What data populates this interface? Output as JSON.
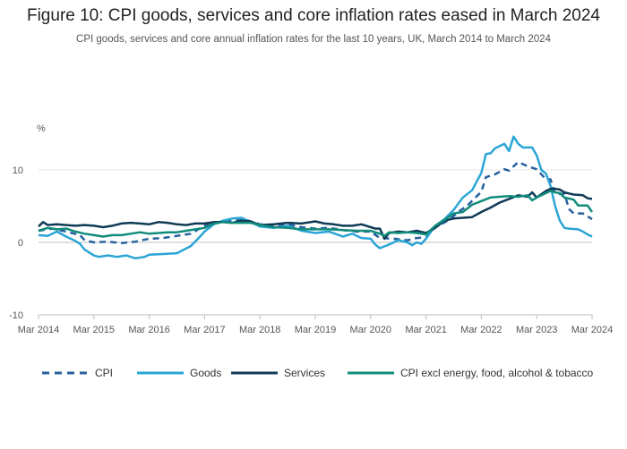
{
  "title": "Figure 10: CPI goods, services and core inflation rates eased in March 2024",
  "subtitle": "CPI goods, services and core annual inflation rates for the last 10 years, UK, March 2014 to March 2024",
  "chart_data": {
    "type": "line",
    "ylabel": "%",
    "ylim": [
      -10,
      15
    ],
    "yticks": [
      -10,
      0,
      10
    ],
    "xlim": [
      0,
      120
    ],
    "xticks": [
      {
        "label": "Mar 2014",
        "value": 0
      },
      {
        "label": "Mar 2015",
        "value": 12
      },
      {
        "label": "Mar 2016",
        "value": 24
      },
      {
        "label": "Mar 2017",
        "value": 36
      },
      {
        "label": "Mar 2018",
        "value": 48
      },
      {
        "label": "Mar 2019",
        "value": 60
      },
      {
        "label": "Mar 2020",
        "value": 72
      },
      {
        "label": "Mar 2021",
        "value": 84
      },
      {
        "label": "Mar 2022",
        "value": 96
      },
      {
        "label": "Mar 2023",
        "value": 108
      },
      {
        "label": "Mar 2024",
        "value": 120
      }
    ],
    "x_note": "x values are months since March 2014",
    "series": [
      {
        "name": "CPI",
        "color": "#27609e",
        "style": "dashed",
        "points": [
          [
            0,
            1.6
          ],
          [
            3,
            1.9
          ],
          [
            6,
            1.5
          ],
          [
            9,
            1.0
          ],
          [
            10,
            0.3
          ],
          [
            12,
            0.0
          ],
          [
            15,
            0.1
          ],
          [
            18,
            -0.1
          ],
          [
            21,
            0.1
          ],
          [
            24,
            0.5
          ],
          [
            27,
            0.6
          ],
          [
            30,
            0.9
          ],
          [
            33,
            1.2
          ],
          [
            36,
            2.3
          ],
          [
            39,
            2.7
          ],
          [
            42,
            3.0
          ],
          [
            45,
            3.1
          ],
          [
            48,
            2.5
          ],
          [
            51,
            2.4
          ],
          [
            54,
            2.5
          ],
          [
            57,
            2.1
          ],
          [
            60,
            1.9
          ],
          [
            63,
            2.0
          ],
          [
            66,
            1.7
          ],
          [
            69,
            1.5
          ],
          [
            72,
            1.5
          ],
          [
            74,
            0.6
          ],
          [
            77,
            0.5
          ],
          [
            80,
            0.3
          ],
          [
            82,
            0.6
          ],
          [
            84,
            0.7
          ],
          [
            86,
            2.1
          ],
          [
            89,
            3.1
          ],
          [
            91,
            4.2
          ],
          [
            93,
            5.1
          ],
          [
            96,
            7.0
          ],
          [
            97,
            9.0
          ],
          [
            99,
            9.4
          ],
          [
            101,
            10.1
          ],
          [
            102,
            9.9
          ],
          [
            104,
            11.1
          ],
          [
            106,
            10.5
          ],
          [
            108,
            10.1
          ],
          [
            110,
            8.7
          ],
          [
            111,
            8.7
          ],
          [
            112,
            6.7
          ],
          [
            114,
            6.7
          ],
          [
            115,
            4.6
          ],
          [
            116,
            4.0
          ],
          [
            118,
            4.0
          ],
          [
            120,
            3.2
          ]
        ]
      },
      {
        "name": "Goods",
        "color": "#2aa5d6",
        "style": "solid",
        "points": [
          [
            0,
            1.0
          ],
          [
            2,
            0.9
          ],
          [
            4,
            1.5
          ],
          [
            6,
            0.8
          ],
          [
            8,
            0.2
          ],
          [
            9,
            -0.2
          ],
          [
            10,
            -1.0
          ],
          [
            12,
            -1.8
          ],
          [
            13,
            -2.0
          ],
          [
            15,
            -1.8
          ],
          [
            17,
            -2.0
          ],
          [
            19,
            -1.8
          ],
          [
            21,
            -2.2
          ],
          [
            23,
            -2.0
          ],
          [
            24,
            -1.7
          ],
          [
            27,
            -1.6
          ],
          [
            30,
            -1.5
          ],
          [
            33,
            -0.5
          ],
          [
            35,
            0.8
          ],
          [
            36,
            1.5
          ],
          [
            38,
            2.5
          ],
          [
            40,
            3.0
          ],
          [
            42,
            3.3
          ],
          [
            44,
            3.4
          ],
          [
            46,
            2.8
          ],
          [
            48,
            2.2
          ],
          [
            51,
            2.0
          ],
          [
            54,
            2.3
          ],
          [
            57,
            1.6
          ],
          [
            60,
            1.3
          ],
          [
            63,
            1.5
          ],
          [
            66,
            0.8
          ],
          [
            68,
            1.2
          ],
          [
            70,
            0.6
          ],
          [
            72,
            0.5
          ],
          [
            73,
            -0.3
          ],
          [
            74,
            -0.8
          ],
          [
            76,
            -0.3
          ],
          [
            78,
            0.3
          ],
          [
            80,
            0.0
          ],
          [
            81,
            -0.4
          ],
          [
            82,
            0.0
          ],
          [
            83,
            -0.2
          ],
          [
            84,
            0.5
          ],
          [
            86,
            2.3
          ],
          [
            88,
            3.2
          ],
          [
            90,
            4.5
          ],
          [
            92,
            6.2
          ],
          [
            94,
            7.2
          ],
          [
            96,
            9.6
          ],
          [
            97,
            12.2
          ],
          [
            98,
            12.3
          ],
          [
            99,
            13.0
          ],
          [
            100,
            13.3
          ],
          [
            101,
            13.6
          ],
          [
            102,
            12.6
          ],
          [
            103,
            14.6
          ],
          [
            104,
            13.6
          ],
          [
            105,
            13.1
          ],
          [
            107,
            13.1
          ],
          [
            108,
            12.0
          ],
          [
            109,
            10.0
          ],
          [
            110,
            9.5
          ],
          [
            111,
            7.8
          ],
          [
            112,
            5.0
          ],
          [
            113,
            3.0
          ],
          [
            114,
            2.0
          ],
          [
            115,
            1.9
          ],
          [
            117,
            1.8
          ],
          [
            118,
            1.5
          ],
          [
            119,
            1.1
          ],
          [
            120,
            0.8
          ]
        ]
      },
      {
        "name": "Services",
        "color": "#0f3a56",
        "style": "solid",
        "points": [
          [
            0,
            2.2
          ],
          [
            1,
            2.8
          ],
          [
            2,
            2.4
          ],
          [
            4,
            2.5
          ],
          [
            6,
            2.4
          ],
          [
            8,
            2.3
          ],
          [
            10,
            2.4
          ],
          [
            12,
            2.3
          ],
          [
            14,
            2.1
          ],
          [
            16,
            2.3
          ],
          [
            18,
            2.6
          ],
          [
            20,
            2.7
          ],
          [
            22,
            2.6
          ],
          [
            24,
            2.5
          ],
          [
            26,
            2.8
          ],
          [
            28,
            2.7
          ],
          [
            30,
            2.5
          ],
          [
            32,
            2.4
          ],
          [
            34,
            2.6
          ],
          [
            36,
            2.6
          ],
          [
            37,
            2.7
          ],
          [
            38,
            2.8
          ],
          [
            40,
            2.8
          ],
          [
            42,
            2.7
          ],
          [
            44,
            3.0
          ],
          [
            46,
            2.9
          ],
          [
            48,
            2.4
          ],
          [
            51,
            2.5
          ],
          [
            54,
            2.7
          ],
          [
            57,
            2.6
          ],
          [
            60,
            2.9
          ],
          [
            62,
            2.6
          ],
          [
            64,
            2.5
          ],
          [
            66,
            2.3
          ],
          [
            68,
            2.3
          ],
          [
            70,
            2.5
          ],
          [
            72,
            2.1
          ],
          [
            73,
            1.9
          ],
          [
            74,
            1.9
          ],
          [
            75,
            0.5
          ],
          [
            76,
            1.3
          ],
          [
            78,
            1.5
          ],
          [
            80,
            1.4
          ],
          [
            82,
            1.6
          ],
          [
            84,
            1.3
          ],
          [
            86,
            2.0
          ],
          [
            88,
            3.0
          ],
          [
            90,
            3.3
          ],
          [
            92,
            3.4
          ],
          [
            94,
            3.5
          ],
          [
            96,
            4.2
          ],
          [
            98,
            4.8
          ],
          [
            100,
            5.5
          ],
          [
            102,
            6.0
          ],
          [
            104,
            6.5
          ],
          [
            106,
            6.3
          ],
          [
            107,
            6.9
          ],
          [
            108,
            6.2
          ],
          [
            110,
            7.1
          ],
          [
            111,
            7.4
          ],
          [
            112,
            7.4
          ],
          [
            113,
            7.3
          ],
          [
            114,
            6.9
          ],
          [
            116,
            6.6
          ],
          [
            118,
            6.5
          ],
          [
            119,
            6.1
          ],
          [
            120,
            6.0
          ]
        ]
      },
      {
        "name": "CPI excl energy, food, alcohol & tobacco",
        "color": "#118c7b",
        "style": "solid",
        "points": [
          [
            0,
            1.6
          ],
          [
            2,
            2.0
          ],
          [
            4,
            1.8
          ],
          [
            6,
            1.9
          ],
          [
            8,
            1.5
          ],
          [
            10,
            1.2
          ],
          [
            12,
            1.0
          ],
          [
            14,
            0.8
          ],
          [
            16,
            1.0
          ],
          [
            18,
            1.0
          ],
          [
            20,
            1.2
          ],
          [
            22,
            1.4
          ],
          [
            24,
            1.2
          ],
          [
            26,
            1.3
          ],
          [
            28,
            1.4
          ],
          [
            30,
            1.4
          ],
          [
            32,
            1.6
          ],
          [
            34,
            1.8
          ],
          [
            36,
            2.0
          ],
          [
            38,
            2.6
          ],
          [
            40,
            2.8
          ],
          [
            42,
            2.7
          ],
          [
            44,
            2.7
          ],
          [
            46,
            2.7
          ],
          [
            48,
            2.4
          ],
          [
            51,
            2.1
          ],
          [
            54,
            2.0
          ],
          [
            57,
            1.8
          ],
          [
            60,
            1.8
          ],
          [
            63,
            1.8
          ],
          [
            66,
            1.7
          ],
          [
            69,
            1.6
          ],
          [
            72,
            1.6
          ],
          [
            74,
            1.2
          ],
          [
            75,
            0.9
          ],
          [
            76,
            1.4
          ],
          [
            78,
            1.3
          ],
          [
            80,
            1.4
          ],
          [
            82,
            1.3
          ],
          [
            84,
            1.1
          ],
          [
            86,
            2.3
          ],
          [
            88,
            3.1
          ],
          [
            90,
            4.0
          ],
          [
            92,
            4.2
          ],
          [
            94,
            5.2
          ],
          [
            96,
            5.7
          ],
          [
            98,
            6.2
          ],
          [
            100,
            6.3
          ],
          [
            102,
            6.4
          ],
          [
            104,
            6.3
          ],
          [
            106,
            6.5
          ],
          [
            107,
            5.8
          ],
          [
            108,
            6.2
          ],
          [
            110,
            6.8
          ],
          [
            111,
            7.1
          ],
          [
            112,
            6.9
          ],
          [
            113,
            6.8
          ],
          [
            114,
            6.2
          ],
          [
            116,
            5.9
          ],
          [
            117,
            5.1
          ],
          [
            119,
            5.1
          ],
          [
            120,
            4.2
          ]
        ]
      }
    ]
  }
}
